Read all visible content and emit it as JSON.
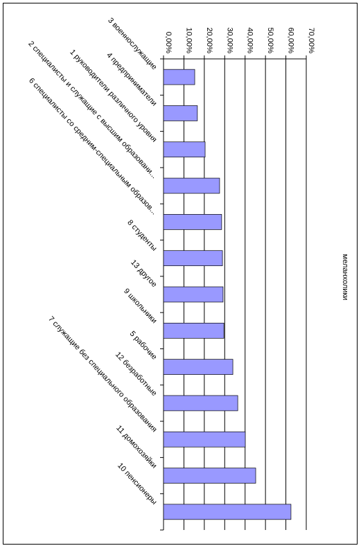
{
  "chart_data": {
    "type": "bar",
    "orientation": "horizontal",
    "title": "меланхолики",
    "categories": [
      "3 военнослужащие",
      "4 предприниматели",
      "1 руководители различного уровня",
      "2 специалисты и служащие с высшим образовани...",
      "6 специалисты со средним-специальным образов...",
      "8 студенты",
      "13 другое",
      "9 школьники",
      "5 рабочие",
      "12 безработные",
      "7 служащие без специального образования",
      "11 домохозяйки",
      "10 пенсионеры"
    ],
    "values": [
      15.3,
      16.6,
      20.4,
      27.5,
      28.5,
      28.9,
      29.2,
      29.6,
      34.0,
      36.4,
      40.1,
      45.2,
      62.5
    ],
    "color": "#9999ff",
    "ylim": [
      0,
      70
    ],
    "yticks": [
      {
        "value": 0,
        "label": "0,00%"
      },
      {
        "value": 10,
        "label": "10,00%"
      },
      {
        "value": 20,
        "label": "20,00%"
      },
      {
        "value": 30,
        "label": "30,00%"
      },
      {
        "value": 40,
        "label": "40,00%"
      },
      {
        "value": 50,
        "label": "50,00%"
      },
      {
        "value": 60,
        "label": "60,00%"
      },
      {
        "value": 70,
        "label": "70,00%"
      }
    ],
    "grid": true
  }
}
